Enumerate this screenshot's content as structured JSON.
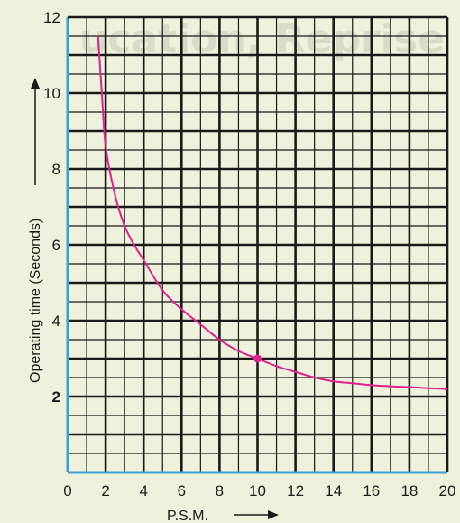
{
  "watermark": "ucation, Reprise",
  "chart_data": {
    "type": "line",
    "title": "",
    "xlabel": "P.S.M.",
    "ylabel": "Operating time (Seconds)",
    "xlim": [
      0,
      20
    ],
    "ylim": [
      0,
      12
    ],
    "x_ticks": [
      "0",
      "2",
      "4",
      "6",
      "8",
      "10",
      "12",
      "14",
      "16",
      "18",
      "20"
    ],
    "y_ticks": [
      "2",
      "4",
      "6",
      "8",
      "10",
      "12"
    ],
    "bold_y_tick": "2",
    "grid": true,
    "series": [
      {
        "name": "",
        "color": "#e0208c",
        "x": [
          1.6,
          1.8,
          2.0,
          2.5,
          3.0,
          3.5,
          4.0,
          5.0,
          6.0,
          7.0,
          8.0,
          9.0,
          10.0,
          11.0,
          12.0,
          13.0,
          14.0,
          15.0,
          16.0,
          17.0,
          18.0,
          19.0,
          20.0
        ],
        "y": [
          11.5,
          10.0,
          8.6,
          7.3,
          6.5,
          6.0,
          5.6,
          4.8,
          4.3,
          3.9,
          3.5,
          3.2,
          3.0,
          2.8,
          2.65,
          2.5,
          2.4,
          2.35,
          2.3,
          2.27,
          2.25,
          2.22,
          2.2
        ]
      }
    ],
    "marker": {
      "x": 10,
      "y": 3.0
    }
  }
}
